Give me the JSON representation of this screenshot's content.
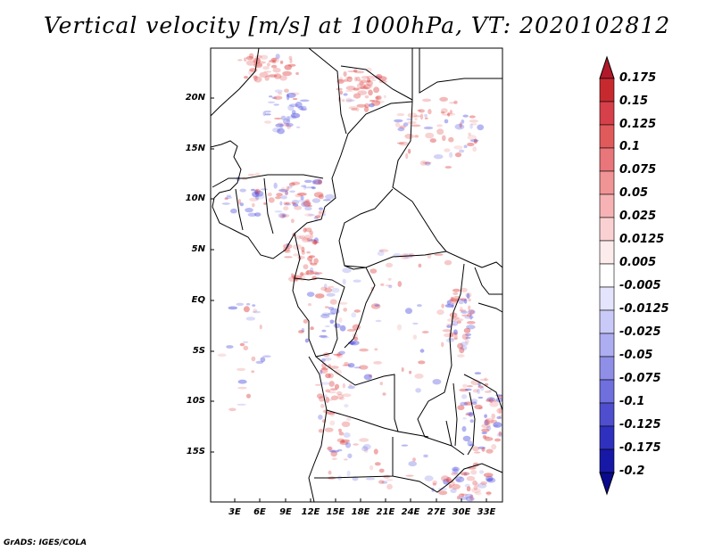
{
  "title": "Vertical velocity [m/s] at 1000hPa, VT: 2020102812",
  "credit": "GrADS: IGES/COLA",
  "lat_labels": [
    "20N",
    "15N",
    "10N",
    "5N",
    "EQ",
    "5S",
    "10S",
    "15S"
  ],
  "lon_labels": [
    "3E",
    "6E",
    "9E",
    "12E",
    "15E",
    "18E",
    "21E",
    "24E",
    "27E",
    "30E",
    "33E"
  ],
  "colorbar": {
    "levels": [
      "0.175",
      "0.15",
      "0.125",
      "0.1",
      "0.075",
      "0.05",
      "0.025",
      "0.0125",
      "0.005",
      "-0.005",
      "-0.0125",
      "-0.025",
      "-0.05",
      "-0.075",
      "-0.1",
      "-0.125",
      "-0.175",
      "-0.2"
    ],
    "colors": [
      "#b2182b",
      "#c62a2f",
      "#d6404a",
      "#e05a5c",
      "#e8767a",
      "#f09496",
      "#f6b2b4",
      "#fad1d2",
      "#fdecec",
      "#ffffff",
      "#e4e4fc",
      "#cacaf8",
      "#adadf2",
      "#8f8fe8",
      "#6f6fdd",
      "#4e4ece",
      "#3030be",
      "#1818a6",
      "#0a0a8f"
    ]
  },
  "colors": {
    "positive": "#e04848",
    "negative": "#5050e0",
    "border": "#000000"
  }
}
